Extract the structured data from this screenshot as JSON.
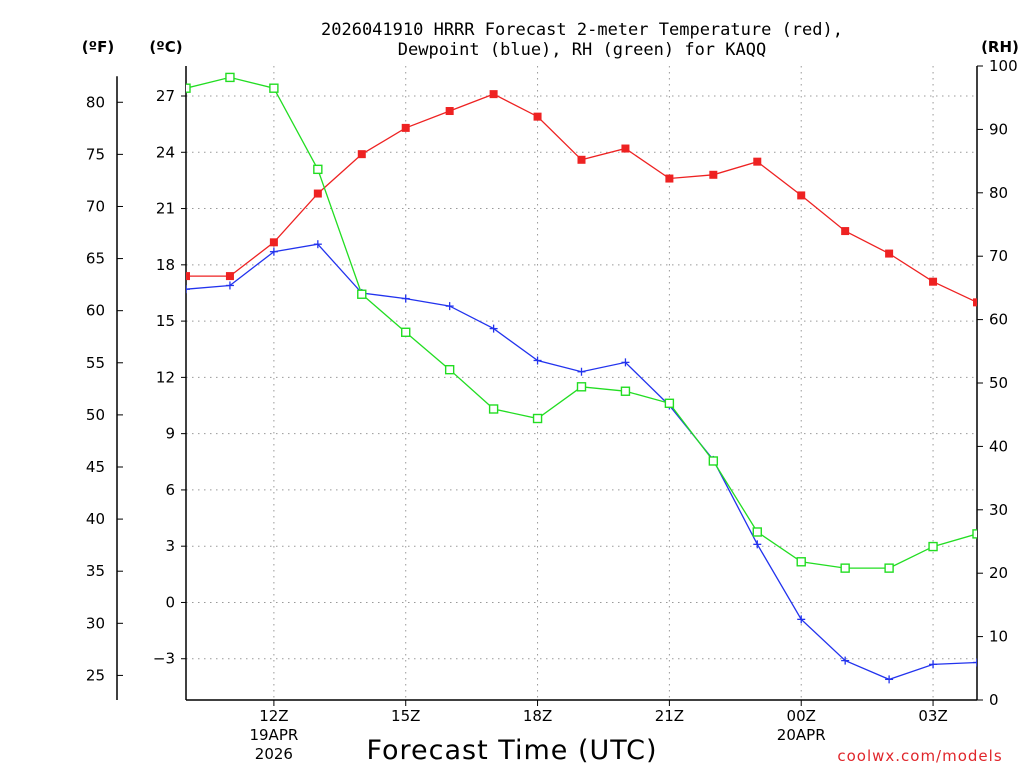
{
  "chart_data": {
    "type": "line",
    "title_line1": "2026041910 HRRR Forecast 2-meter Temperature (red),",
    "title_line2": "Dewpoint (blue), RH (green) for KAQQ",
    "xlabel": "Forecast Time (UTC)",
    "credit": "coolwx.com/models",
    "left_unit_f": "(ºF)",
    "left_unit_c": "(ºC)",
    "right_unit": "(RH)",
    "hours": [
      10,
      11,
      12,
      13,
      14,
      15,
      16,
      17,
      18,
      19,
      20,
      21,
      22,
      23,
      24,
      25,
      26,
      27,
      28
    ],
    "xlim": [
      10,
      28
    ],
    "x_ticks": [
      {
        "hour": 12,
        "label": "12Z",
        "sub1": "19APR",
        "sub2": "2026"
      },
      {
        "hour": 15,
        "label": "15Z",
        "sub1": "",
        "sub2": ""
      },
      {
        "hour": 18,
        "label": "18Z",
        "sub1": "",
        "sub2": ""
      },
      {
        "hour": 21,
        "label": "21Z",
        "sub1": "",
        "sub2": ""
      },
      {
        "hour": 24,
        "label": "00Z",
        "sub1": "20APR",
        "sub2": ""
      },
      {
        "hour": 27,
        "label": "03Z",
        "sub1": "",
        "sub2": ""
      }
    ],
    "celsius_axis": {
      "min": -5.2,
      "max": 28.6,
      "ticks": [
        -3,
        0,
        3,
        6,
        9,
        12,
        15,
        18,
        21,
        24,
        27
      ]
    },
    "fahrenheit_ticks": [
      25,
      30,
      35,
      40,
      45,
      50,
      55,
      60,
      65,
      70,
      75,
      80
    ],
    "rh_axis": {
      "min": 0,
      "max": 100,
      "ticks": [
        0,
        10,
        20,
        30,
        40,
        50,
        60,
        70,
        80,
        90,
        100
      ]
    },
    "series": [
      {
        "name": "Temperature",
        "unit": "C",
        "color": "#ee2222",
        "marker": "filled-square",
        "values": [
          17.4,
          17.4,
          19.2,
          21.8,
          23.9,
          25.3,
          26.2,
          27.1,
          25.9,
          23.6,
          24.2,
          22.6,
          22.8,
          23.5,
          21.7,
          19.8,
          18.6,
          17.1,
          16.0
        ]
      },
      {
        "name": "Dewpoint",
        "unit": "C",
        "color": "#2233ee",
        "marker": "plus",
        "values": [
          16.7,
          16.9,
          18.7,
          19.1,
          16.5,
          16.2,
          15.8,
          14.6,
          12.9,
          12.3,
          12.8,
          10.5,
          7.6,
          3.1,
          -0.9,
          -3.1,
          -4.1,
          -3.3,
          -3.2
        ]
      },
      {
        "name": "RH",
        "unit": "%",
        "color": "#22dd22",
        "marker": "open-square",
        "values": [
          96.5,
          98.2,
          96.5,
          83.7,
          64.0,
          58.0,
          52.1,
          45.9,
          44.4,
          49.4,
          48.7,
          46.8,
          37.7,
          26.5,
          21.8,
          20.8,
          20.8,
          24.2,
          26.2
        ]
      }
    ]
  }
}
